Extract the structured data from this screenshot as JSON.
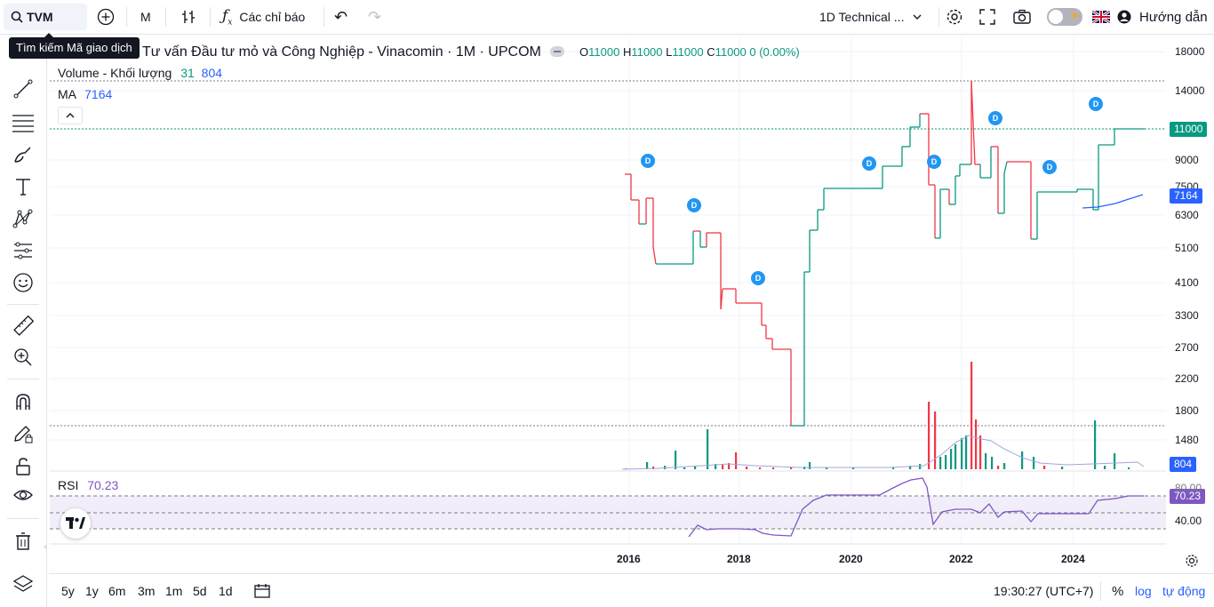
{
  "topbar": {
    "symbol": "TVM",
    "interval": "M",
    "indicators_label": "Các chỉ báo",
    "layout_name": "1D Technical ...",
    "help_label": "Hướng dẫn"
  },
  "tooltip": "Tìm kiếm Mã giao dịch",
  "legend": {
    "title": "Tư vấn Đầu tư mỏ và Công Nghiệp - Vinacomin · 1M · UPCOM",
    "o_label": "O",
    "o_value": "11000",
    "h_label": "H",
    "h_value": "11000",
    "l_label": "L",
    "l_value": "11000",
    "c_label": "C",
    "c_value": "11000",
    "change": "0 (0.00%)",
    "volume_label": "Volume - Khối lượng",
    "volume_a": "31",
    "volume_b": "804",
    "ma_label": "MA",
    "ma_value": "7164",
    "rsi_label": "RSI",
    "rsi_value": "70.23"
  },
  "price_axis": [
    "18000",
    "14000",
    "11000",
    "9000",
    "7500",
    "6300",
    "5100",
    "4100",
    "3300",
    "2700",
    "2200",
    "1800",
    "1480"
  ],
  "price_tags": {
    "last": "11000",
    "ma": "7164",
    "volume": "804",
    "rsi": "70.23"
  },
  "rsi_axis": [
    "80.00",
    "40.00"
  ],
  "time_axis": [
    "2016",
    "2018",
    "2020",
    "2022",
    "2024"
  ],
  "dividend_marker": "D",
  "bottombar": {
    "ranges": [
      "5y",
      "1y",
      "6m",
      "3m",
      "1m",
      "5d",
      "1d"
    ],
    "clock": "19:30:27 (UTC+7)",
    "percent": "%",
    "log": "log",
    "auto": "tự động"
  },
  "colors": {
    "up": "#089981",
    "down": "#f23645",
    "ma": "#2962ff",
    "rsi": "#7e57c2",
    "accent": "#2962ff"
  },
  "chart_data": {
    "type": "line",
    "title": "Tư vấn Đầu tư mỏ và Công Nghiệp - Vinacomin · 1M · UPCOM",
    "x_ticks": [
      "2016",
      "2018",
      "2020",
      "2022",
      "2024"
    ],
    "price_ticks": [
      18000,
      14000,
      11000,
      9000,
      7500,
      6300,
      5100,
      4100,
      3300,
      2700,
      2200,
      1800,
      1480
    ],
    "series": [
      {
        "name": "TVM",
        "last_value": 11000
      },
      {
        "name": "MA",
        "last_value": 7164
      },
      {
        "name": "Volume - Khối lượng",
        "last_value": 804
      },
      {
        "name": "RSI",
        "last_value": 70.23
      }
    ]
  }
}
